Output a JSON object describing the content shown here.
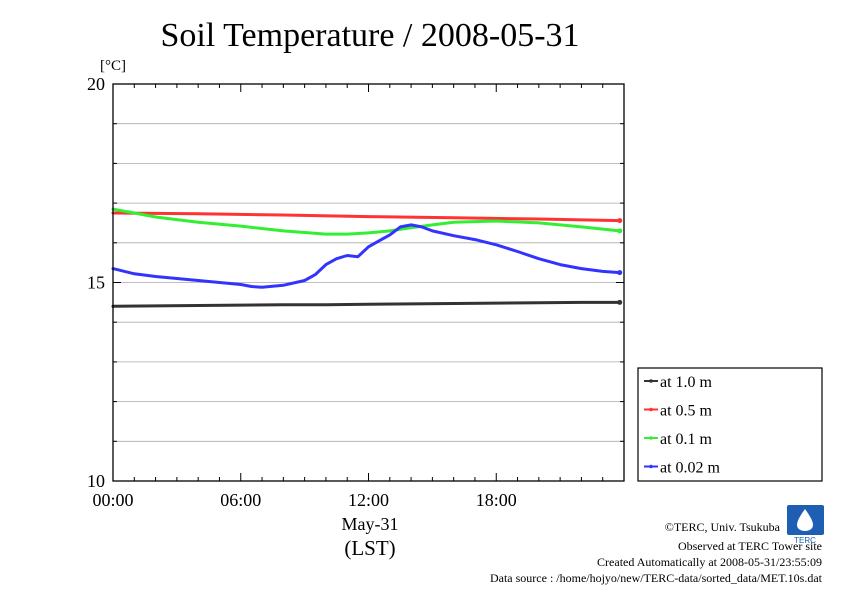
{
  "chart_data": {
    "type": "line",
    "title": "Soil Temperature / 2008-05-31",
    "ylabel": "[°C]",
    "ylim": [
      10,
      20
    ],
    "yticks": [
      "10",
      "15",
      "20"
    ],
    "xlim": [
      0,
      24
    ],
    "xticks": [
      "00:00",
      "06:00",
      "12:00",
      "18:00"
    ],
    "xlabel_date": "May-31",
    "xlabel_tz": "(LST)",
    "grid": true,
    "legend_position": "right-bottom",
    "series": [
      {
        "name": "at 1.0 m",
        "color": "#333333",
        "x": [
          0,
          2,
          4,
          6,
          8,
          10,
          12,
          14,
          16,
          18,
          20,
          22,
          23.8
        ],
        "y": [
          14.4,
          14.41,
          14.42,
          14.43,
          14.44,
          14.44,
          14.45,
          14.46,
          14.47,
          14.48,
          14.49,
          14.5,
          14.5
        ]
      },
      {
        "name": "at 0.5 m",
        "color": "#ff3333",
        "x": [
          0,
          4,
          8,
          12,
          16,
          20,
          23.8
        ],
        "y": [
          16.75,
          16.73,
          16.7,
          16.66,
          16.63,
          16.6,
          16.56
        ]
      },
      {
        "name": "at 0.1 m",
        "color": "#33ee33",
        "x": [
          0,
          1,
          2,
          4,
          6,
          8,
          10,
          11,
          12,
          13,
          14,
          15,
          16,
          18,
          20,
          22,
          23.8
        ],
        "y": [
          16.85,
          16.75,
          16.65,
          16.52,
          16.42,
          16.3,
          16.22,
          16.22,
          16.25,
          16.3,
          16.38,
          16.45,
          16.52,
          16.55,
          16.5,
          16.4,
          16.3
        ]
      },
      {
        "name": "at 0.02 m",
        "color": "#3333ff",
        "x": [
          0,
          1,
          2,
          3,
          4,
          5,
          6,
          6.5,
          7,
          8,
          9,
          9.5,
          10,
          10.5,
          11,
          11.5,
          12,
          12.5,
          13,
          13.5,
          14,
          14.5,
          15,
          16,
          17,
          18,
          19,
          20,
          21,
          22,
          23,
          23.8
        ],
        "y": [
          15.35,
          15.22,
          15.15,
          15.1,
          15.05,
          15.0,
          14.95,
          14.9,
          14.88,
          14.93,
          15.05,
          15.2,
          15.45,
          15.6,
          15.68,
          15.65,
          15.9,
          16.05,
          16.2,
          16.4,
          16.45,
          16.4,
          16.3,
          16.18,
          16.08,
          15.95,
          15.78,
          15.6,
          15.45,
          15.35,
          15.28,
          15.25
        ]
      }
    ]
  },
  "credits": {
    "line1": "©TERC, Univ. Tsukuba",
    "line2": "Observed at TERC Tower site",
    "line3": "Created Automatically at 2008-05-31/23:55:09",
    "line4": "Data source : /home/hojyo/new/TERC-data/sorted_data/MET.10s.dat"
  },
  "logo": {
    "text": "TERC"
  }
}
